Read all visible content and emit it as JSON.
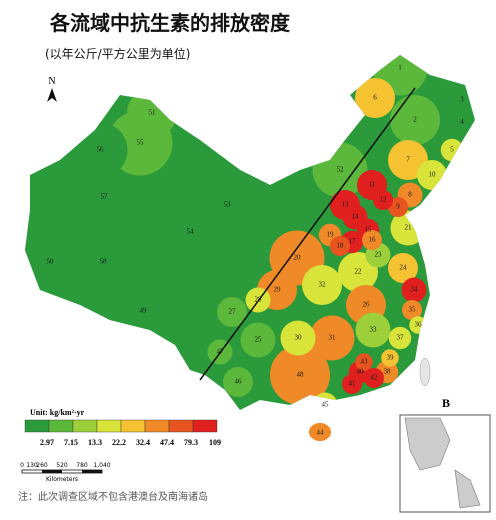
{
  "title": "各流域中抗生素的排放密度",
  "subtitle": "(以年公斤/平方公里为单位)",
  "north": "N",
  "panel": "B",
  "legend": {
    "unit": "Unit: kg/km²·yr",
    "colors": [
      "#2a9a3a",
      "#5cb83a",
      "#9ccf3a",
      "#d8e43a",
      "#f5c232",
      "#f08a28",
      "#e8541f",
      "#e01f1f"
    ],
    "ticks": [
      2.97,
      7.15,
      13.3,
      22.2,
      32.4,
      47.4,
      79.3,
      109
    ]
  },
  "scale": {
    "labels": [
      "0",
      "130",
      "260",
      "520",
      "780",
      "1,040"
    ],
    "unit": "Kilometers"
  },
  "note": "注：此次调查区域不包含港澳台及南海诸岛",
  "regions": [
    {
      "label": "1",
      "color": "#5cb83a"
    },
    {
      "label": "2",
      "color": "#5cb83a"
    },
    {
      "label": "3",
      "color": "#2a9a3a"
    },
    {
      "label": "4",
      "color": "#2a9a3a"
    },
    {
      "label": "5",
      "color": "#d8e43a"
    },
    {
      "label": "6",
      "color": "#f5c232"
    },
    {
      "label": "7",
      "color": "#f5c232"
    },
    {
      "label": "8",
      "color": "#f08a28"
    },
    {
      "label": "9",
      "color": "#e8541f"
    },
    {
      "label": "10",
      "color": "#d8e43a"
    },
    {
      "label": "11",
      "color": "#e01f1f"
    },
    {
      "label": "12",
      "color": "#e01f1f"
    },
    {
      "label": "13",
      "color": "#e01f1f"
    },
    {
      "label": "14",
      "color": "#e01f1f"
    },
    {
      "label": "15",
      "color": "#e01f1f"
    },
    {
      "label": "16",
      "color": "#f08a28"
    },
    {
      "label": "17",
      "color": "#e01f1f"
    },
    {
      "label": "18",
      "color": "#e8541f"
    },
    {
      "label": "19",
      "color": "#f08a28"
    },
    {
      "label": "20",
      "color": "#f08a28"
    },
    {
      "label": "21",
      "color": "#d8e43a"
    },
    {
      "label": "22",
      "color": "#d8e43a"
    },
    {
      "label": "23",
      "color": "#9ccf3a"
    },
    {
      "label": "24",
      "color": "#f5c232"
    },
    {
      "label": "25",
      "color": "#5cb83a"
    },
    {
      "label": "26",
      "color": "#f08a28"
    },
    {
      "label": "27",
      "color": "#5cb83a"
    },
    {
      "label": "28",
      "color": "#d8e43a"
    },
    {
      "label": "29",
      "color": "#f08a28"
    },
    {
      "label": "30",
      "color": "#d8e43a"
    },
    {
      "label": "31",
      "color": "#f08a28"
    },
    {
      "label": "32",
      "color": "#d8e43a"
    },
    {
      "label": "33",
      "color": "#9ccf3a"
    },
    {
      "label": "34",
      "color": "#e01f1f"
    },
    {
      "label": "35",
      "color": "#f08a28"
    },
    {
      "label": "36",
      "color": "#d8e43a"
    },
    {
      "label": "37",
      "color": "#d8e43a"
    },
    {
      "label": "38",
      "color": "#f08a28"
    },
    {
      "label": "39",
      "color": "#f5c232"
    },
    {
      "label": "40",
      "color": "#e01f1f"
    },
    {
      "label": "41",
      "color": "#e01f1f"
    },
    {
      "label": "42",
      "color": "#e01f1f"
    },
    {
      "label": "43",
      "color": "#e8541f"
    },
    {
      "label": "44",
      "color": "#f08a28"
    },
    {
      "label": "45",
      "color": "#d8e43a"
    },
    {
      "label": "46",
      "color": "#5cb83a"
    },
    {
      "label": "47",
      "color": "#5cb83a"
    },
    {
      "label": "48",
      "color": "#f08a28"
    },
    {
      "label": "49",
      "color": "#2a9a3a"
    },
    {
      "label": "50",
      "color": "#2a9a3a"
    },
    {
      "label": "51",
      "color": "#5cb83a"
    },
    {
      "label": "52",
      "color": "#5cb83a"
    },
    {
      "label": "53",
      "color": "#2a9a3a"
    },
    {
      "label": "54",
      "color": "#2a9a3a"
    },
    {
      "label": "55",
      "color": "#5cb83a"
    },
    {
      "label": "56",
      "color": "#2a9a3a"
    },
    {
      "label": "57",
      "color": "#2a9a3a"
    },
    {
      "label": "58",
      "color": "#2a9a3a"
    }
  ]
}
